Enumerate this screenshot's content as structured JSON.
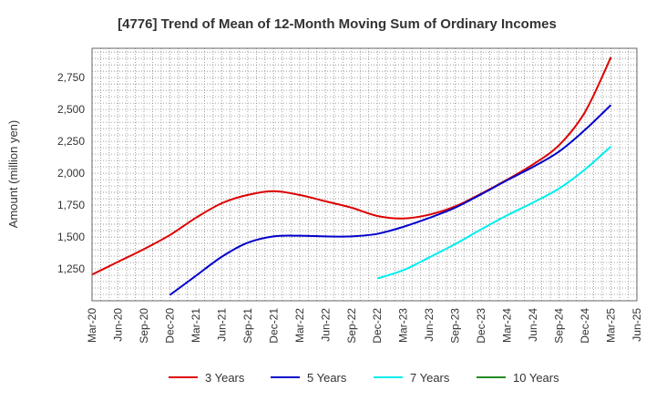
{
  "chart_data": {
    "type": "line",
    "title": "[4776]  Trend of Mean of 12-Month Moving Sum of Ordinary Incomes",
    "xlabel": "",
    "ylabel": "Amount (million yen)",
    "categories": [
      "Mar-20",
      "Jun-20",
      "Sep-20",
      "Dec-20",
      "Mar-21",
      "Jun-21",
      "Sep-21",
      "Dec-21",
      "Mar-22",
      "Jun-22",
      "Sep-22",
      "Dec-22",
      "Mar-23",
      "Jun-23",
      "Sep-23",
      "Dec-23",
      "Mar-24",
      "Jun-24",
      "Sep-24",
      "Dec-24",
      "Mar-25",
      "Jun-25"
    ],
    "ylim": [
      1000,
      2980
    ],
    "yticks": [
      1250,
      1500,
      1750,
      2000,
      2250,
      2500,
      2750
    ],
    "ytick_labels": [
      "1,250",
      "1,500",
      "1,750",
      "2,000",
      "2,250",
      "2,500",
      "2,750"
    ],
    "grid": true,
    "legend_position": "bottom",
    "series": [
      {
        "name": "3 Years",
        "color": "#dd0000",
        "values": [
          1205,
          1305,
          1405,
          1515,
          1650,
          1765,
          1830,
          1860,
          1830,
          1780,
          1730,
          1665,
          1645,
          1675,
          1740,
          1840,
          1950,
          2070,
          2220,
          2480,
          2910,
          null
        ]
      },
      {
        "name": "5 Years",
        "color": "#0000cc",
        "values": [
          null,
          null,
          null,
          1045,
          1195,
          1345,
          1455,
          1505,
          1510,
          1505,
          1505,
          1525,
          1580,
          1650,
          1730,
          1835,
          1945,
          2050,
          2170,
          2340,
          2535,
          null
        ]
      },
      {
        "name": "7 Years",
        "color": "#00eeee",
        "values": [
          null,
          null,
          null,
          null,
          null,
          null,
          null,
          null,
          null,
          null,
          null,
          1175,
          1240,
          1340,
          1445,
          1560,
          1670,
          1770,
          1880,
          2030,
          2210,
          null
        ]
      },
      {
        "name": "10 Years",
        "color": "#228b22",
        "values": [
          null,
          null,
          null,
          null,
          null,
          null,
          null,
          null,
          null,
          null,
          null,
          null,
          null,
          null,
          null,
          null,
          null,
          null,
          null,
          null,
          null,
          null
        ]
      }
    ]
  }
}
